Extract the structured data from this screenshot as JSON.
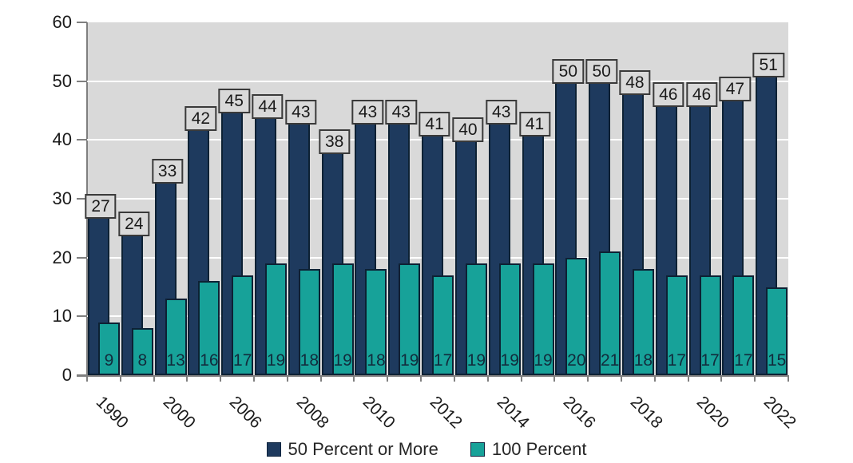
{
  "chart_data": {
    "type": "bar",
    "bar_style": "overlapped-pairs",
    "categories": [
      "1990",
      "",
      "2000",
      "",
      "2006",
      "",
      "2008",
      "",
      "2010",
      "",
      "2012",
      "",
      "2014",
      "",
      "2016",
      "",
      "2018",
      "",
      "2020",
      "",
      "2022"
    ],
    "x_tick_labels_visible": [
      "1990",
      "2000",
      "2006",
      "2008",
      "2010",
      "2012",
      "2014",
      "2016",
      "2018",
      "2020",
      "2022"
    ],
    "series": [
      {
        "name": "50 Percent or More",
        "color": "#1e3a5e",
        "border_color": "#0d2134",
        "values": [
          27,
          24,
          33,
          42,
          45,
          44,
          43,
          38,
          43,
          43,
          41,
          40,
          43,
          41,
          50,
          50,
          48,
          46,
          46,
          47,
          51
        ],
        "label_style": "boxed-above-bar"
      },
      {
        "name": "100 Percent",
        "color": "#17a299",
        "border_color": "#0d2134",
        "values": [
          9,
          8,
          13,
          16,
          17,
          19,
          18,
          19,
          18,
          19,
          17,
          19,
          19,
          19,
          20,
          21,
          18,
          17,
          17,
          17,
          15
        ],
        "label_style": "inside-bar-bottom"
      }
    ],
    "title": "",
    "xlabel": "",
    "ylabel": "",
    "ylim": [
      0,
      60
    ],
    "yticks": [
      0,
      10,
      20,
      30,
      40,
      50,
      60
    ],
    "grid": "horizontal-white-lines",
    "plot_bg": "#d9d9d9",
    "label_box_bg": "#d9d9d9",
    "label_box_border": "#3a3a3a",
    "axis_color": "#7f7f7f",
    "text_color": "#1a1a1a",
    "legend_position": "bottom-center"
  }
}
